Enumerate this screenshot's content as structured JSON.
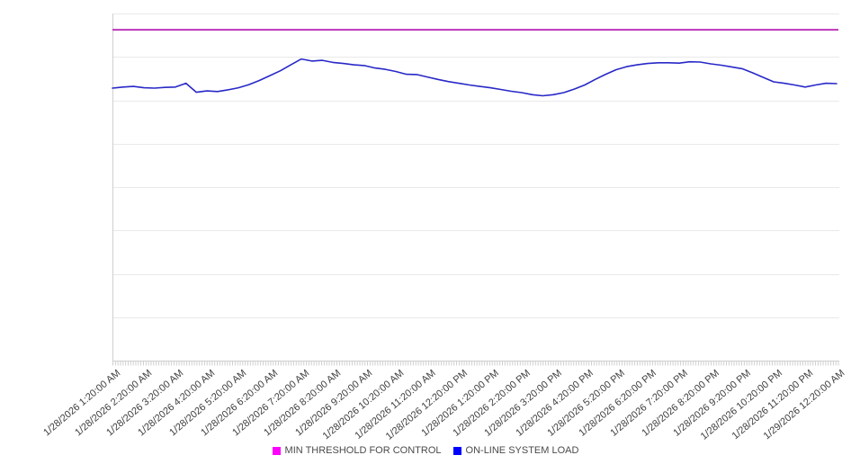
{
  "chart_data": {
    "type": "line",
    "title": "",
    "xlabel": "",
    "ylabel": "",
    "ylim": [
      0,
      100
    ],
    "grid": "horizontal, 9 evenly spaced lines",
    "legend_position": "bottom-center",
    "x_start": "1/28/2026 1:20:00 AM",
    "x_end": "1/29/2026 12:20:00 AM",
    "sample_interval_minutes": 20,
    "x_tick_labels": [
      "1/28/2026 1:20:00 AM",
      "1/28/2026 2:20:00 AM",
      "1/28/2026 3:20:00 AM",
      "1/28/2026 4:20:00 AM",
      "1/28/2026 5:20:00 AM",
      "1/28/2026 6:20:00 AM",
      "1/28/2026 7:20:00 AM",
      "1/28/2026 8:20:00 AM",
      "1/28/2026 9:20:00 AM",
      "1/28/2026 10:20:00 AM",
      "1/28/2026 11:20:00 AM",
      "1/28/2026 12:20:00 PM",
      "1/28/2026 1:20:00 PM",
      "1/28/2026 2:20:00 PM",
      "1/28/2026 3:20:00 PM",
      "1/28/2026 4:20:00 PM",
      "1/28/2026 5:20:00 PM",
      "1/28/2026 6:20:00 PM",
      "1/28/2026 7:20:00 PM",
      "1/28/2026 8:20:00 PM",
      "1/28/2026 9:20:00 PM",
      "1/28/2026 10:20:00 PM",
      "1/28/2026 11:20:00 PM",
      "1/29/2026 12:20:00 AM"
    ],
    "series": [
      {
        "name": "MIN THRESHOLD FOR CONTROL",
        "type": "constant-threshold",
        "value": 95.3,
        "marker_color": "#ff00ff",
        "line_color": "#bb35bb"
      },
      {
        "name": "ON-LINE SYSTEM LOAD",
        "type": "line",
        "marker_color": "#0000ff",
        "line_color": "#2828c8",
        "values": [
          78.5,
          78.8,
          79.0,
          78.6,
          78.5,
          78.7,
          78.8,
          79.9,
          77.3,
          77.7,
          77.5,
          78.0,
          78.6,
          79.5,
          80.7,
          82.1,
          83.5,
          85.2,
          86.9,
          86.3,
          86.5,
          85.9,
          85.6,
          85.2,
          85.0,
          84.3,
          83.9,
          83.3,
          82.5,
          82.4,
          81.7,
          81.0,
          80.4,
          79.9,
          79.4,
          79.0,
          78.6,
          78.1,
          77.6,
          77.2,
          76.6,
          76.3,
          76.6,
          77.2,
          78.2,
          79.4,
          81.0,
          82.5,
          83.8,
          84.7,
          85.2,
          85.6,
          85.8,
          85.8,
          85.7,
          86.1,
          86.0,
          85.5,
          85.1,
          84.6,
          84.1,
          82.9,
          81.6,
          80.3,
          79.9,
          79.4,
          78.8,
          79.4,
          79.9,
          79.8
        ]
      }
    ],
    "colors": {
      "gridline": "#e9e9e9",
      "axis": "#cfcfcf",
      "tick": "#cfcfcf",
      "axis_label_text": "#3d3d3d",
      "legend_text": "#4a4a4a",
      "background": "#ffffff"
    }
  },
  "legend": {
    "items": [
      {
        "label": "MIN THRESHOLD FOR CONTROL",
        "color": "#ff00ff"
      },
      {
        "label": "ON-LINE SYSTEM LOAD",
        "color": "#0000ff"
      }
    ]
  }
}
